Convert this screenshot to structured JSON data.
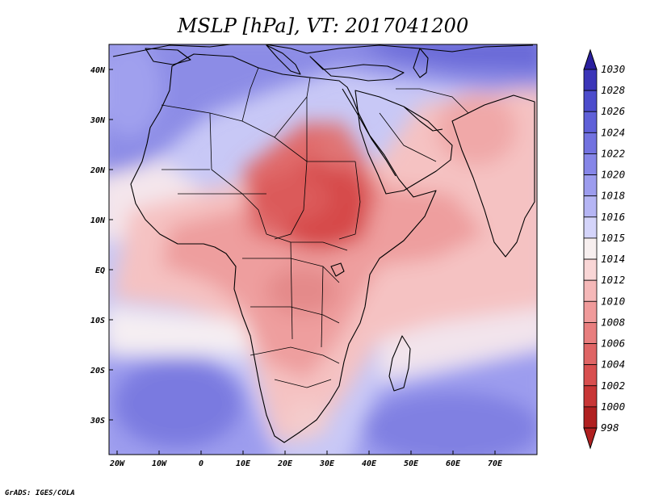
{
  "title": "MSLP [hPa], VT: 2017041200",
  "credit": "GrADS: IGES/COLA",
  "lon_ticks": [
    "20W",
    "10W",
    "0",
    "10E",
    "20E",
    "30E",
    "40E",
    "50E",
    "60E",
    "70E"
  ],
  "lat_ticks": [
    "40N",
    "30N",
    "20N",
    "10N",
    "EQ",
    "10S",
    "20S",
    "30S"
  ],
  "colorbar": {
    "levels": [
      "1030",
      "1028",
      "1026",
      "1024",
      "1022",
      "1020",
      "1018",
      "1016",
      "1015",
      "1014",
      "1012",
      "1010",
      "1008",
      "1006",
      "1004",
      "1002",
      "1000",
      "998"
    ],
    "colors": [
      "#2a1f9e",
      "#3b35b8",
      "#4c4ccc",
      "#5f60d8",
      "#7272e0",
      "#8686e8",
      "#9c9cee",
      "#b5b5f4",
      "#d4d4fa",
      "#f7efef",
      "#f9d6d6",
      "#f5b8b8",
      "#f09a9a",
      "#e87e7e",
      "#df6565",
      "#d84f4f",
      "#c83636",
      "#b02020"
    ]
  },
  "map": {
    "domain_lon": [
      -22,
      80
    ],
    "domain_lat": [
      -37,
      45
    ],
    "field": "mean sea level pressure",
    "colors": {
      "ocean_high": "#7c7ce0",
      "ocean_mid": "#c8c8f6",
      "neutral": "#f8f0f0",
      "weak_low": "#f5c6c6",
      "mid_low": "#ec9c9c",
      "deep_low": "#dd6060",
      "core_low": "#d44848"
    }
  }
}
